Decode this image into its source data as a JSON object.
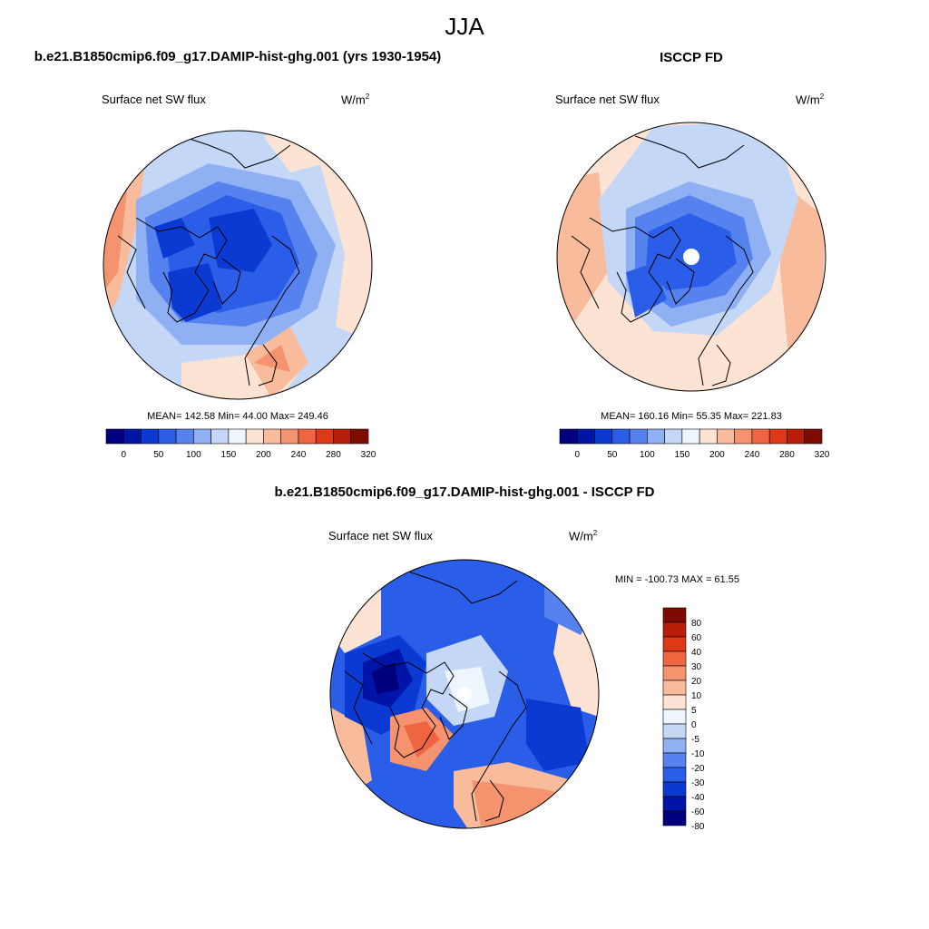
{
  "figure": {
    "season": "JJA",
    "panel1": {
      "title": "b.e21.B1850cmip6.f09_g17.DAMIP-hist-ghg.001 (yrs 1930-1954)",
      "field": "Surface net SW flux",
      "units": "W/m",
      "units_sup": "2",
      "stats": "MEAN= 142.58  Min=  44.00  Max= 249.46"
    },
    "panel2": {
      "title": "ISCCP FD",
      "field": "Surface net SW flux",
      "units": "W/m",
      "units_sup": "2",
      "stats": "MEAN= 160.16  Min=  55.35  Max= 221.83"
    },
    "panel3": {
      "title": "b.e21.B1850cmip6.f09_g17.DAMIP-hist-ghg.001 - ISCCP FD",
      "field": "Surface net SW flux",
      "units": "W/m",
      "units_sup": "2",
      "stats": "MIN = -100.73 MAX =  61.55"
    }
  },
  "colorbar_abs": {
    "colors": [
      "#00007e",
      "#0015a8",
      "#0a3ad1",
      "#2a5de8",
      "#5582ef",
      "#8fb0f2",
      "#c4d7f6",
      "#eef5fc",
      "#fde3d3",
      "#f8bc9c",
      "#f5936e",
      "#ee6540",
      "#dd3916",
      "#b81d08",
      "#7e0b00"
    ],
    "tick_labels": [
      "0",
      "50",
      "100",
      "150",
      "200",
      "240",
      "280",
      "320"
    ]
  },
  "colorbar_diff": {
    "colors": [
      "#7e0b00",
      "#b81d08",
      "#dd3916",
      "#ee6540",
      "#f5936e",
      "#f8bc9c",
      "#fde3d3",
      "#eef5fc",
      "#c4d7f6",
      "#8fb0f2",
      "#5582ef",
      "#2a5de8",
      "#0a3ad1",
      "#0015a8",
      "#00007e"
    ],
    "tick_labels": [
      "80",
      "60",
      "40",
      "30",
      "20",
      "10",
      "5",
      "0",
      "-5",
      "-10",
      "-20",
      "-30",
      "-40",
      "-60",
      "-80"
    ]
  }
}
